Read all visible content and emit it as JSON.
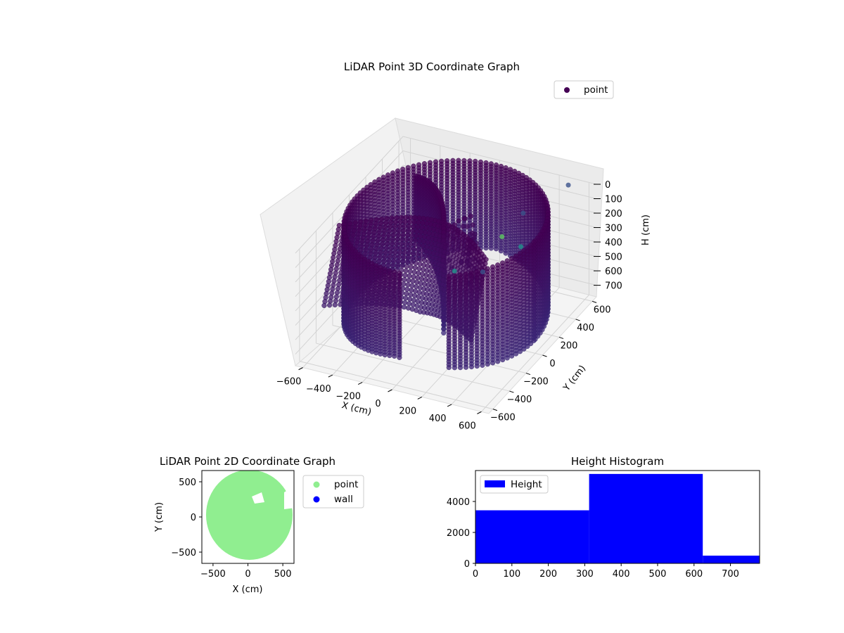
{
  "chart_data": [
    {
      "type": "scatter3d",
      "title": "LiDAR Point 3D Coordinate Graph",
      "xlabel": "X (cm)",
      "ylabel": "Y (cm)",
      "zlabel": "H (cm)",
      "x_ticks": [
        "−600",
        "−400",
        "−200",
        "0",
        "200",
        "400",
        "600"
      ],
      "y_ticks": [
        "600",
        "400",
        "200",
        "0",
        "−200",
        "−400",
        "−600"
      ],
      "z_ticks": [
        "0",
        "100",
        "200",
        "300",
        "400",
        "500",
        "600",
        "700"
      ],
      "xlim": [
        -650,
        650
      ],
      "ylim": [
        -650,
        650
      ],
      "zlim": [
        0,
        780
      ],
      "zaxis_inverted": true,
      "legend": {
        "label": "point",
        "color": "#440154",
        "position": "upper right"
      },
      "colormap": "viridis",
      "structure": {
        "cylinder_wall_radius_cm": 600,
        "height_range_cm": [
          0,
          780
        ]
      },
      "outlier_points": [
        {
          "x": 500,
          "y": 580,
          "h": 0,
          "color": "#3b528b"
        },
        {
          "x": 380,
          "y": 250,
          "h": 20,
          "color": "#3b528b"
        },
        {
          "x": 310,
          "y": 120,
          "h": 120,
          "color": "#5ec962"
        },
        {
          "x": 420,
          "y": 150,
          "h": 180,
          "color": "#21918c"
        },
        {
          "x": 180,
          "y": -220,
          "h": 180,
          "color": "#21918c"
        },
        {
          "x": 470,
          "y": -400,
          "h": 0,
          "color": "#3b528b"
        }
      ]
    },
    {
      "type": "scatter",
      "title": "LiDAR Point 2D Coordinate Graph",
      "xlabel": "X (cm)",
      "ylabel": "Y (cm)",
      "x_ticks": [
        "−500",
        "0",
        "500"
      ],
      "y_ticks": [
        "500",
        "0",
        "−500"
      ],
      "xlim": [
        -660,
        660
      ],
      "ylim": [
        -660,
        660
      ],
      "legend": [
        {
          "label": "point",
          "color": "#90ee90"
        },
        {
          "label": "wall",
          "color": "#0000ff"
        }
      ],
      "legend_position": "outside right",
      "point_region": {
        "center": [
          20,
          30
        ],
        "radius_x": 620,
        "radius_y": 640
      }
    },
    {
      "type": "bar",
      "title": "Height Histogram",
      "xlabel": "",
      "ylabel": "",
      "x_ticks": [
        "0",
        "100",
        "200",
        "300",
        "400",
        "500",
        "600",
        "700"
      ],
      "y_ticks": [
        "0",
        "2000",
        "4000"
      ],
      "xlim": [
        0,
        780
      ],
      "ylim": [
        0,
        6000
      ],
      "bins": [
        {
          "start": 0,
          "end": 312,
          "value": 3430
        },
        {
          "start": 312,
          "end": 624,
          "value": 5780
        },
        {
          "start": 624,
          "end": 780,
          "value": 500
        }
      ],
      "color": "#0000ff",
      "legend": {
        "label": "Height",
        "position": "upper left"
      }
    }
  ]
}
